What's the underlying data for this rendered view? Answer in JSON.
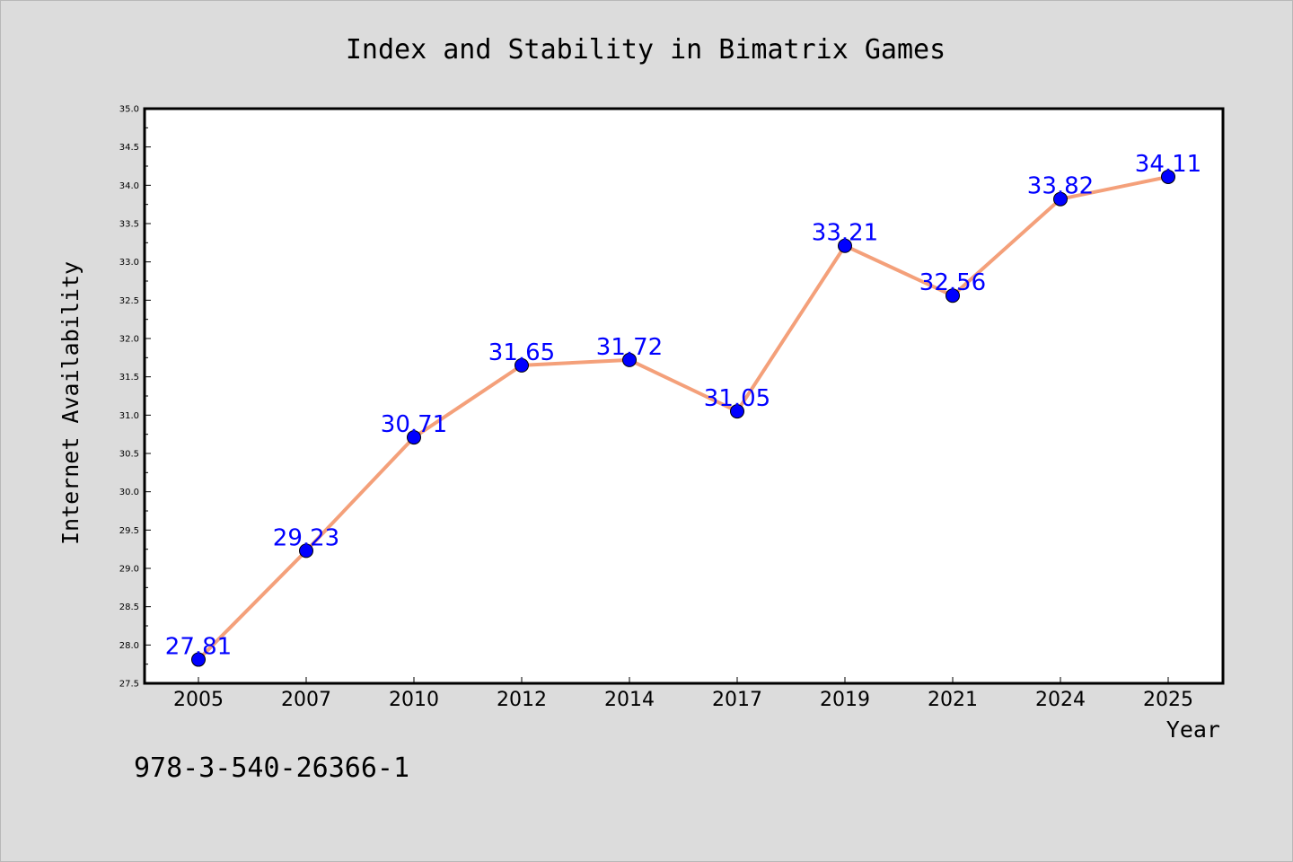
{
  "chart_data": {
    "type": "line",
    "title": "Index and Stability in Bimatrix Games",
    "xlabel": "Year",
    "ylabel": "Internet Availability",
    "categories": [
      "2005",
      "2007",
      "2010",
      "2012",
      "2014",
      "2017",
      "2019",
      "2021",
      "2024",
      "2025"
    ],
    "series": [
      {
        "values": [
          27.81,
          29.23,
          30.71,
          31.65,
          31.72,
          31.05,
          33.21,
          32.56,
          33.82,
          34.11
        ],
        "line_color": "#f4a07a",
        "marker_color": "#0000ff"
      }
    ],
    "data_labels": [
      "27.81",
      "29.23",
      "30.71",
      "31.65",
      "31.72",
      "31.05",
      "33.21",
      "32.56",
      "33.82",
      "34.11"
    ],
    "ylim": [
      27.5,
      35.0
    ],
    "y_ticks": [
      "27.5",
      "28.0",
      "28.5",
      "29.0",
      "29.5",
      "30.0",
      "30.5",
      "31.0",
      "31.5",
      "32.0",
      "32.5",
      "33.0",
      "33.5",
      "34.0",
      "34.5",
      "35.0"
    ],
    "grid": false,
    "legend": "none"
  },
  "footer": {
    "isbn": "978-3-540-26366-1"
  },
  "colors": {
    "background": "#dcdcdc",
    "plot_background": "#ffffff",
    "line": "#f4a07a",
    "marker": "#0000ff",
    "data_label": "#0000ff"
  }
}
